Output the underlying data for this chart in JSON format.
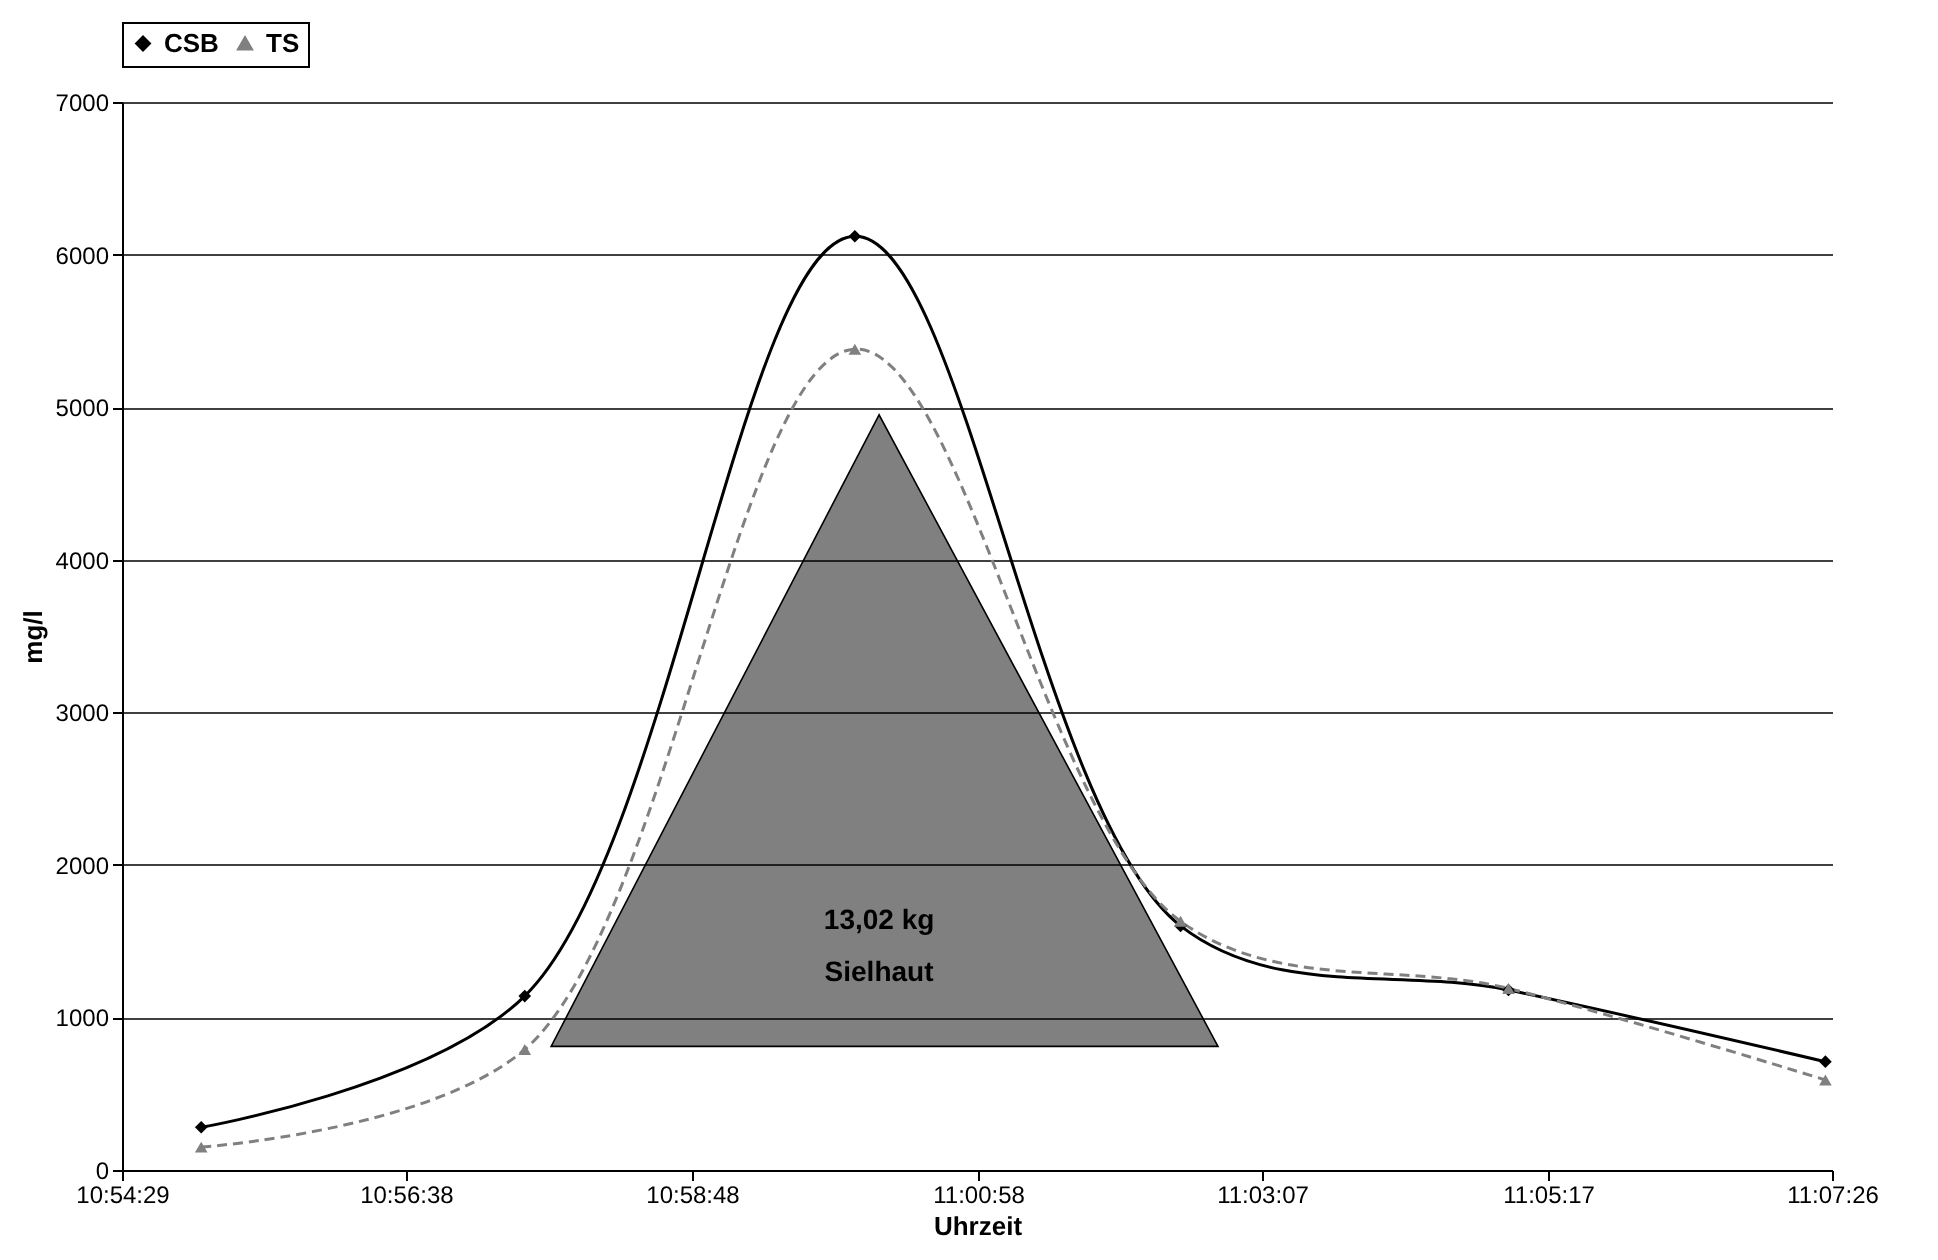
{
  "chart_data": {
    "type": "line",
    "xlabel": "Uhrzeit",
    "ylabel": "mg/l",
    "xlim": [
      10.908056,
      11.123889
    ],
    "xticks": [
      {
        "value": 10.908056,
        "label": "10:54:29"
      },
      {
        "value": 10.943889,
        "label": "10:56:38"
      },
      {
        "value": 10.98,
        "label": "10:58:48"
      },
      {
        "value": 11.016111,
        "label": "11:00:58"
      },
      {
        "value": 11.051944,
        "label": "11:03:07"
      },
      {
        "value": 11.088056,
        "label": "11:05:17"
      },
      {
        "value": 11.123889,
        "label": "11:07:26"
      }
    ],
    "ylim": [
      0,
      7000
    ],
    "yticks": [
      0,
      1000,
      2000,
      3000,
      4000,
      5000,
      6000,
      7000
    ],
    "grid": "y",
    "legend": "top",
    "x": [
      10.918056,
      10.958889,
      11.000556,
      11.041667,
      11.083056,
      11.123056
    ],
    "series": [
      {
        "name": "CSB",
        "color": "#000000",
        "marker": "diamond",
        "line_style": "solid",
        "values": [
          280,
          1140,
          6120,
          1600,
          1180,
          710
        ]
      },
      {
        "name": "TS",
        "color": "#808080",
        "marker": "triangle",
        "line_style": "dashed",
        "values": [
          150,
          790,
          5380,
          1630,
          1190,
          590
        ]
      }
    ],
    "annotations": [
      "13,02 kg\nSielhaut"
    ]
  }
}
